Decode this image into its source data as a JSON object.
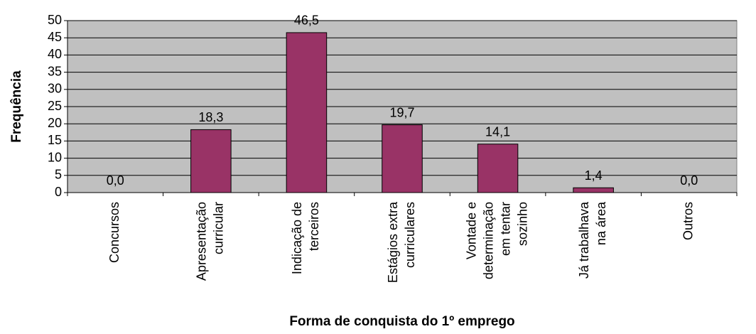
{
  "chart_data": {
    "type": "bar",
    "y_label": "Frequência",
    "x_label": "Forma de conquista do 1º emprego",
    "categories": [
      [
        "Concursos"
      ],
      [
        "Apresentação",
        "curricular"
      ],
      [
        "Indicação de",
        "terceiros"
      ],
      [
        "Estágios extra",
        "curriculares"
      ],
      [
        "Vontade e",
        "determinação",
        "em tentar",
        "sozinho"
      ],
      [
        "Já trabalhava",
        "na área"
      ],
      [
        "Outros"
      ]
    ],
    "values": [
      0,
      18.3,
      46.5,
      19.7,
      14.1,
      1.4,
      0
    ],
    "value_labels": [
      "0,0",
      "18,3",
      "46,5",
      "19,7",
      "14,1",
      "1,4",
      "0,0"
    ],
    "color": "#993366",
    "ylim": [
      0,
      50
    ],
    "yticks": [
      0,
      5,
      10,
      15,
      20,
      25,
      30,
      35,
      40,
      45,
      50
    ],
    "grid": true
  }
}
